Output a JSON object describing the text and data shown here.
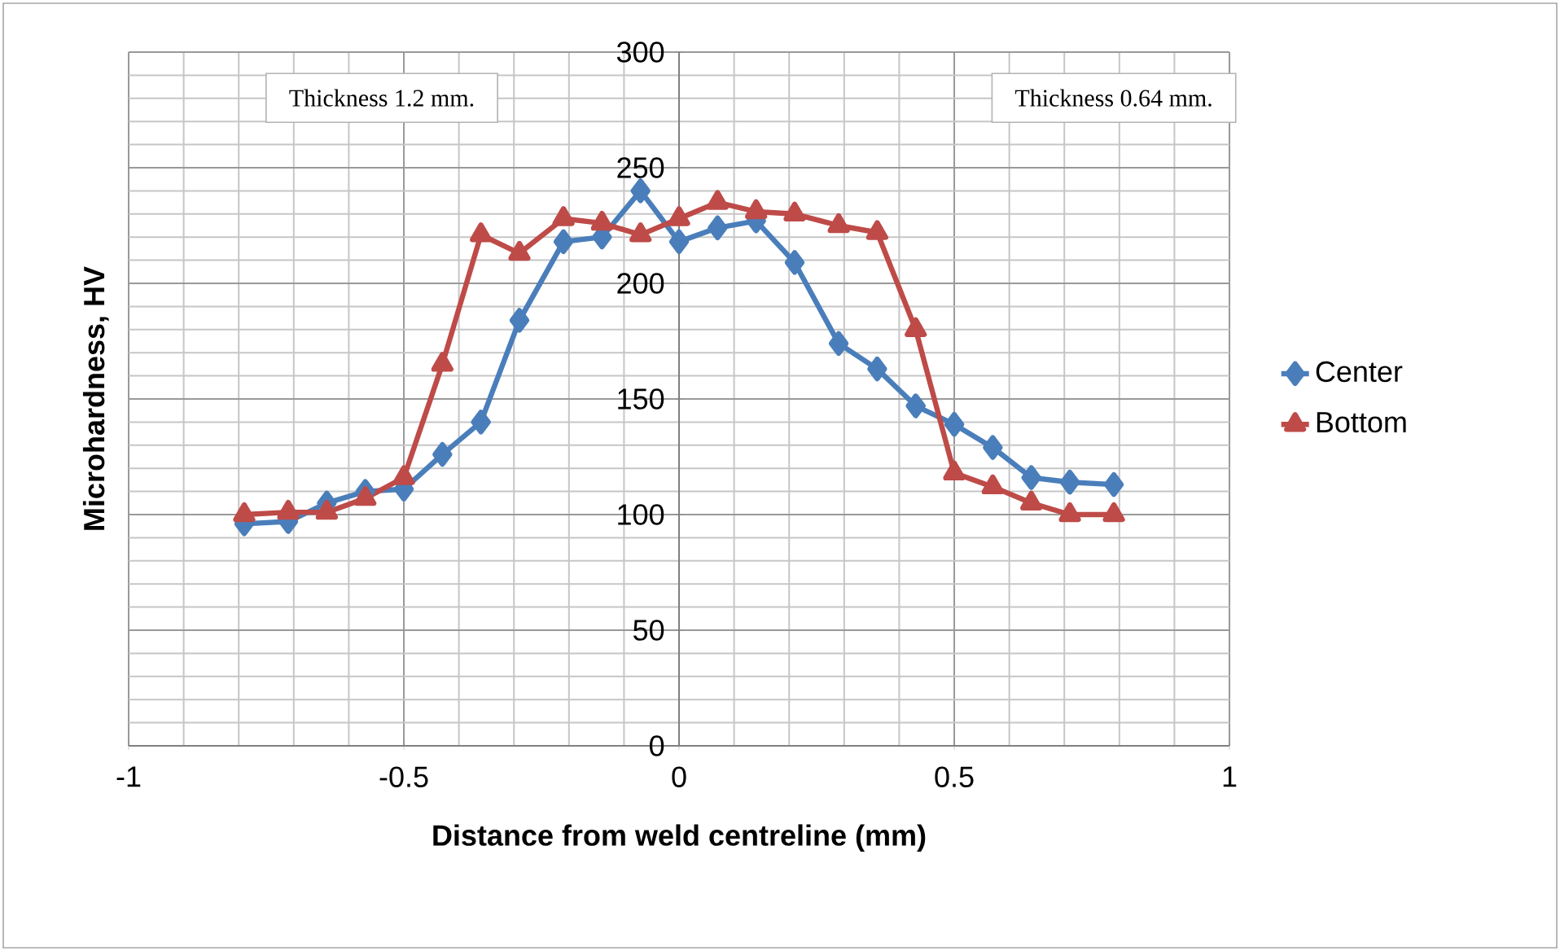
{
  "chart_data": {
    "type": "line",
    "xlabel": "Distance from weld centreline (mm)",
    "ylabel": "Microhardness, HV",
    "annotations": [
      "Thickness 1.2 mm.",
      "Thickness 0.64 mm."
    ],
    "x": [
      -0.79,
      -0.71,
      -0.64,
      -0.57,
      -0.5,
      -0.43,
      -0.36,
      -0.29,
      -0.21,
      -0.14,
      -0.07,
      0,
      0.07,
      0.14,
      0.21,
      0.29,
      0.36,
      0.43,
      0.5,
      0.57,
      0.64,
      0.71,
      0.79
    ],
    "series": [
      {
        "name": "Center",
        "color": "#4a7ebb",
        "marker": "diamond",
        "values": [
          96,
          97,
          105,
          110,
          111,
          126,
          140,
          184,
          218,
          220,
          240,
          218,
          224,
          227,
          209,
          174,
          163,
          147,
          139,
          129,
          116,
          114,
          113
        ]
      },
      {
        "name": "Bottom",
        "color": "#be4b48",
        "marker": "triangle",
        "values": [
          100,
          101,
          101,
          107,
          116,
          165,
          221,
          213,
          228,
          226,
          221,
          228,
          235,
          231,
          230,
          225,
          222,
          180,
          118,
          112,
          105,
          100,
          100
        ]
      }
    ],
    "xlim": [
      -1,
      1
    ],
    "ylim": [
      0,
      300
    ],
    "xticks": [
      -1,
      -0.5,
      0,
      0.5,
      1
    ],
    "yticks": [
      0,
      50,
      100,
      150,
      200,
      250,
      300
    ],
    "grid": true,
    "legend": "right",
    "line_style": "solid"
  }
}
